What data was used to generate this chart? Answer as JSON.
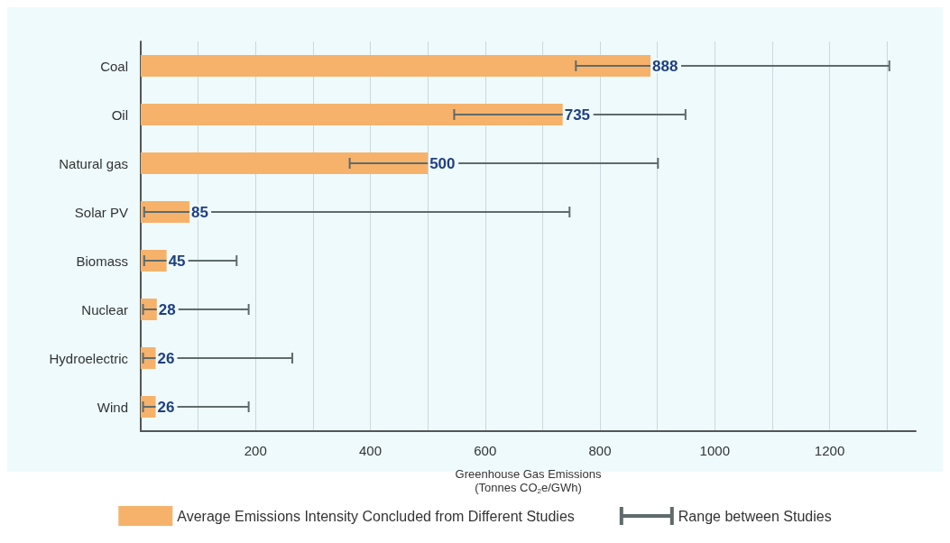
{
  "chart_data": {
    "type": "bar",
    "orientation": "horizontal",
    "xlabel": "Greenhouse Gas Emissions\n(Tonnes CO$_{2}$e/GWh)",
    "categories": [
      "Coal",
      "Oil",
      "Natural gas",
      "Solar PV",
      "Biomass",
      "Nuclear",
      "Hydroelectric",
      "Wind"
    ],
    "series": [
      {
        "name": "Average Emissions Intensity Concluded from Different Studies",
        "color": "#f6b26b",
        "values": [
          888,
          735,
          500,
          85,
          45,
          28,
          26,
          26
        ],
        "errors": [
          [
            758,
            1304
          ],
          [
            546,
            949
          ],
          [
            364,
            901
          ],
          [
            6,
            747
          ],
          [
            6,
            167
          ],
          [
            4,
            188
          ],
          [
            4,
            264
          ],
          [
            4,
            188
          ]
        ]
      }
    ],
    "annotations": [
      "Range between Studies"
    ],
    "data_labels": true,
    "xlim": [
      0,
      1350
    ],
    "xticks": [
      {
        "value": 100,
        "label": null
      },
      200,
      {
        "value": 300,
        "label": null
      },
      400,
      {
        "value": 500,
        "label": null
      },
      600,
      {
        "value": 700,
        "label": null
      },
      800,
      {
        "value": 900,
        "label": null
      },
      1000,
      {
        "value": 1100,
        "label": null
      },
      1200,
      {
        "value": 1300,
        "label": null
      }
    ],
    "grid": "x",
    "legend": "bottom"
  }
}
